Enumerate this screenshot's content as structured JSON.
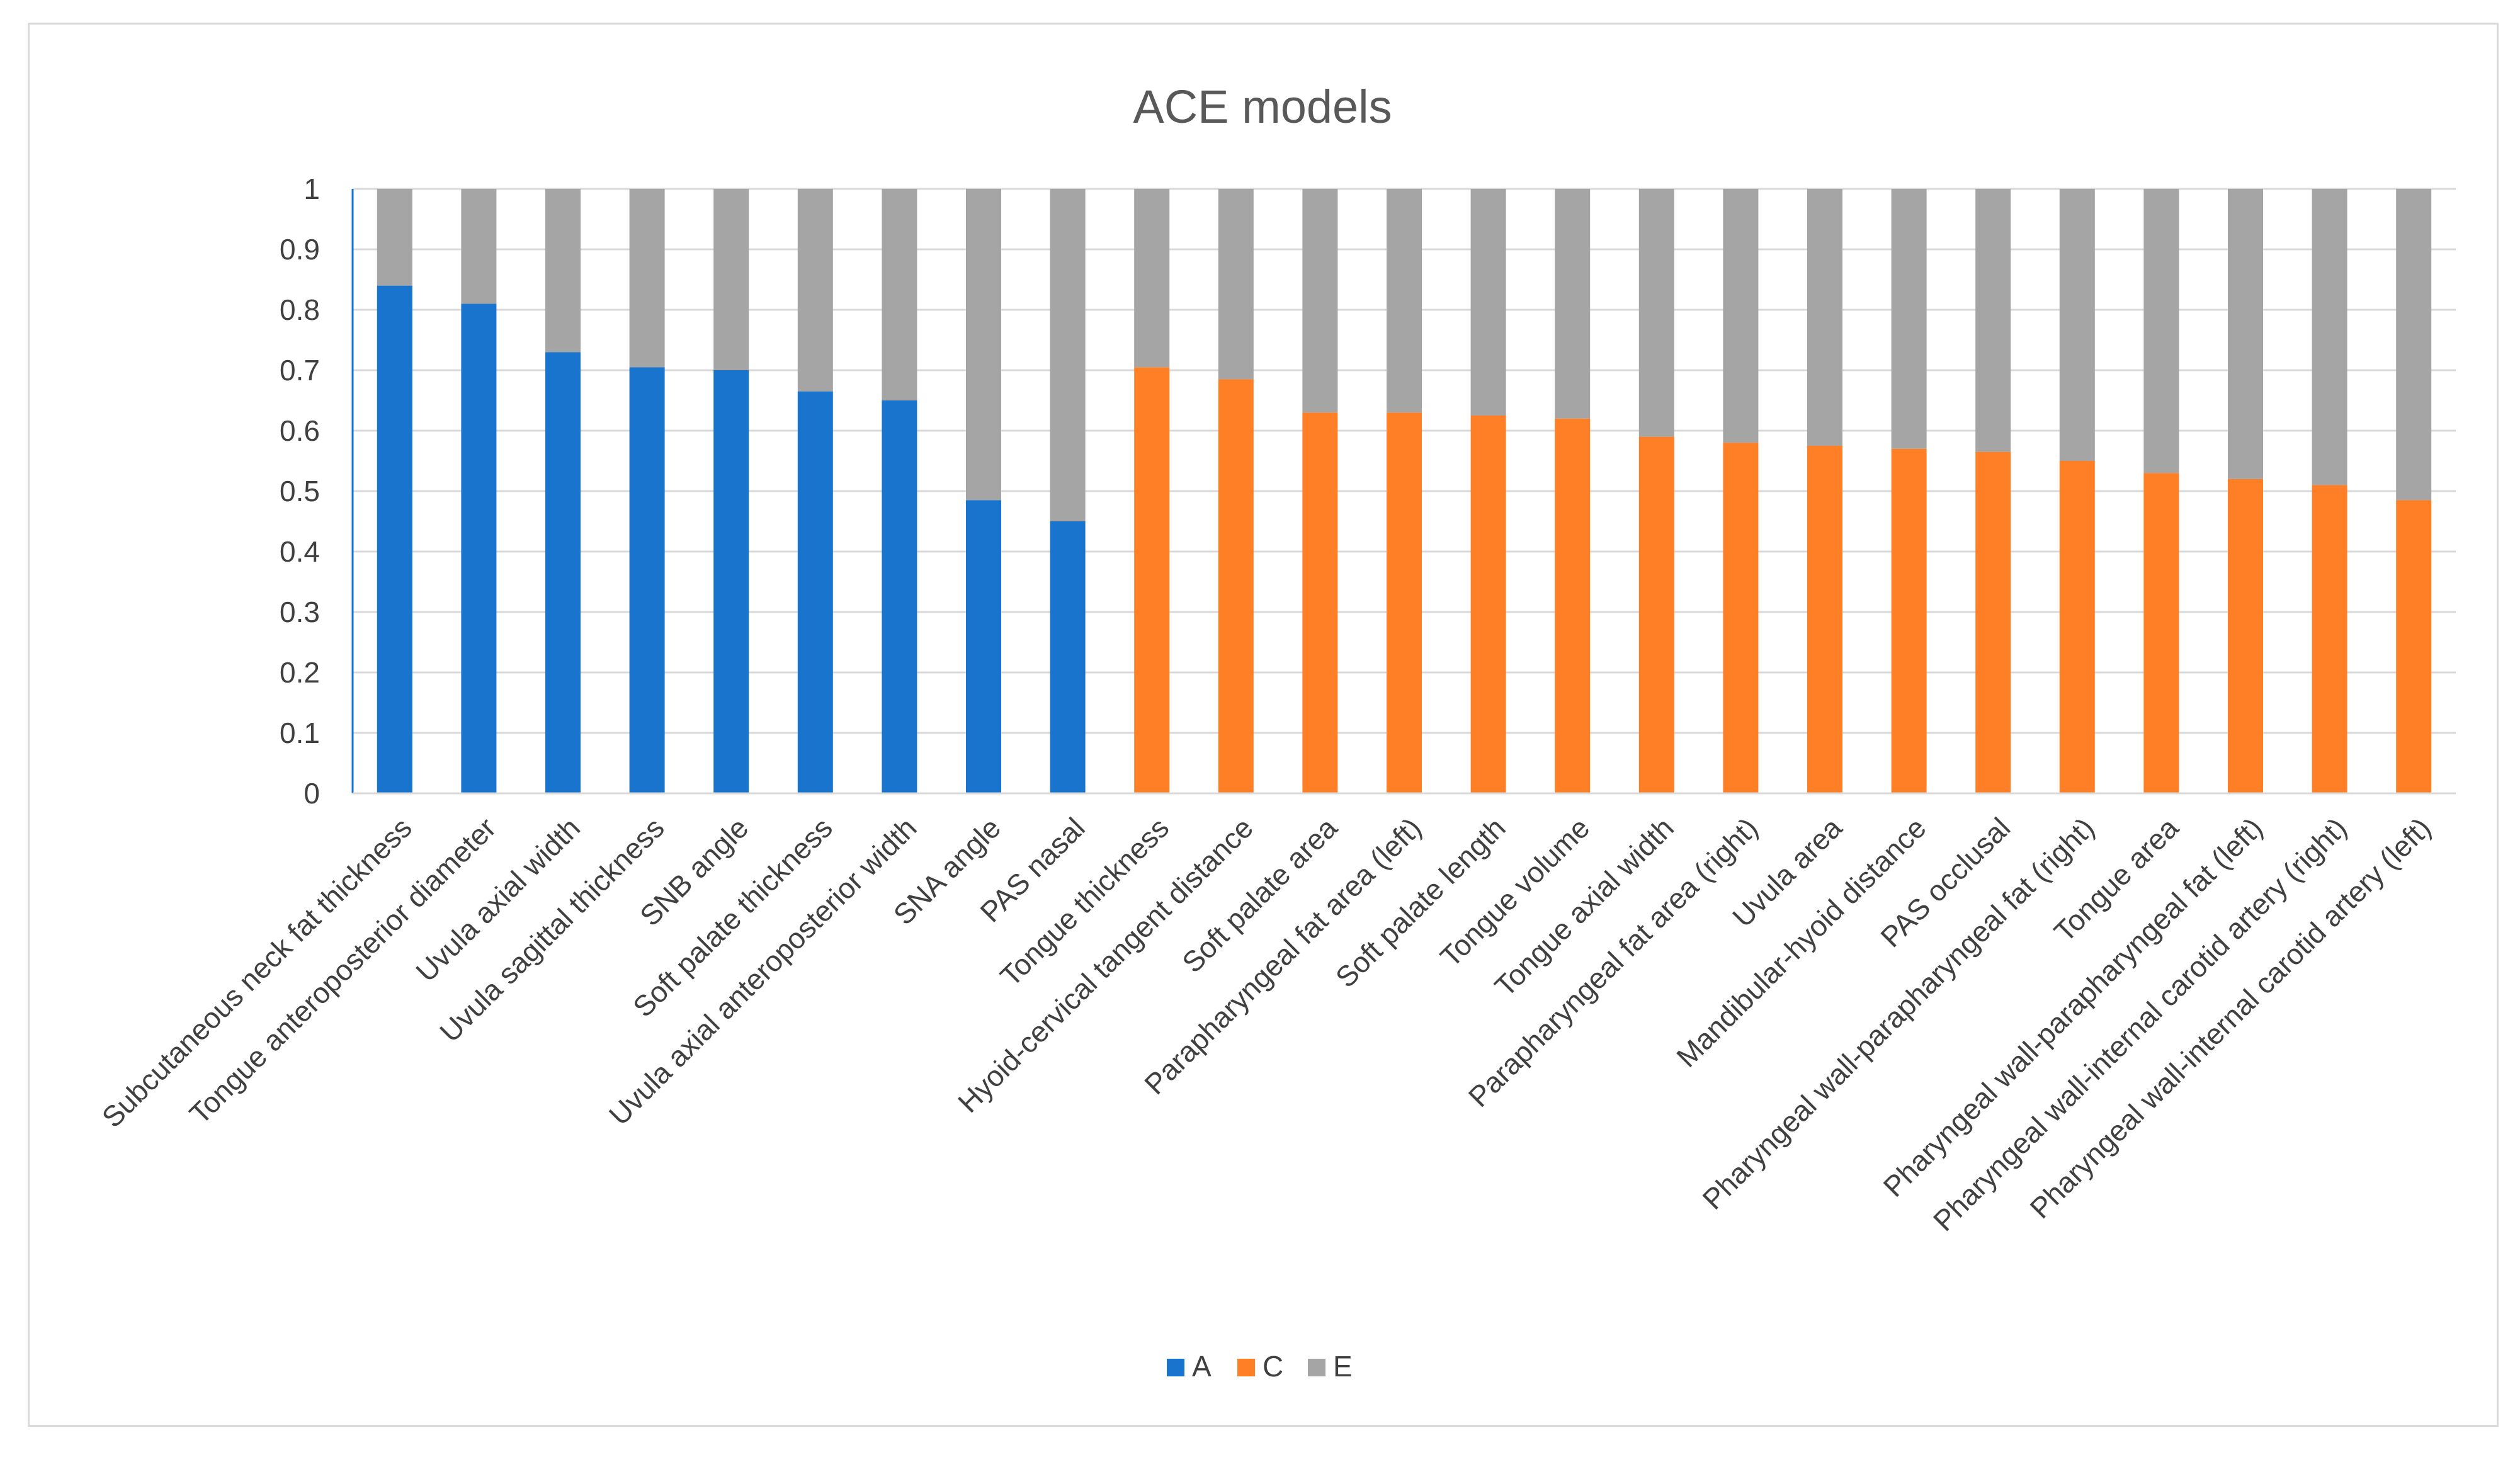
{
  "chart_data": {
    "type": "bar",
    "stacked": true,
    "title": "ACE models",
    "xlabel": "",
    "ylabel": "",
    "ylim": [
      0,
      1
    ],
    "yticks": [
      "0",
      "0.1",
      "0.2",
      "0.3",
      "0.4",
      "0.5",
      "0.6",
      "0.7",
      "0.8",
      "0.9",
      "1"
    ],
    "grid": true,
    "legend_position": "bottom-center",
    "categories": [
      "Subcutaneous neck fat thickness",
      "Tongue anteroposterior diameter",
      "Uvula axial width",
      "Uvula sagittal thickness",
      "SNB angle",
      "Soft palate thickness",
      "Uvula axial anteroposterior width",
      "SNA angle",
      "PAS nasal",
      "Tongue thickness",
      "Hyoid-cervical tangent distance",
      "Soft palate area",
      "Parapharyngeal fat area (left)",
      "Soft palate length",
      "Tongue volume",
      "Tongue axial width",
      "Parapharyngeal fat area (right)",
      "Uvula area",
      "Mandibular-hyoid distance",
      "PAS occlusal",
      "Pharyngeal wall-parapharyngeal fat (right)",
      "Tongue area",
      "Pharyngeal wall-parapharyngeal fat (left)",
      "Pharyngeal wall-internal carotid artery (right)",
      "Pharyngeal wall-internal carotid artery (left)"
    ],
    "series": [
      {
        "name": "A",
        "color": "#1874CD",
        "values": [
          0.84,
          0.81,
          0.73,
          0.705,
          0.7,
          0.665,
          0.65,
          0.485,
          0.45,
          0,
          0,
          0,
          0,
          0,
          0,
          0,
          0,
          0,
          0,
          0,
          0,
          0,
          0,
          0,
          0
        ]
      },
      {
        "name": "C",
        "color": "#FF7F27",
        "values": [
          0,
          0,
          0,
          0,
          0,
          0,
          0,
          0,
          0,
          0.705,
          0.685,
          0.63,
          0.63,
          0.625,
          0.62,
          0.59,
          0.58,
          0.575,
          0.57,
          0.565,
          0.55,
          0.53,
          0.52,
          0.51,
          0.485
        ]
      },
      {
        "name": "E",
        "color": "#A5A5A5",
        "values": [
          0.16,
          0.19,
          0.27,
          0.295,
          0.3,
          0.335,
          0.35,
          0.515,
          0.55,
          0.295,
          0.315,
          0.37,
          0.37,
          0.375,
          0.38,
          0.41,
          0.42,
          0.425,
          0.43,
          0.435,
          0.45,
          0.47,
          0.48,
          0.49,
          0.515
        ]
      }
    ]
  }
}
